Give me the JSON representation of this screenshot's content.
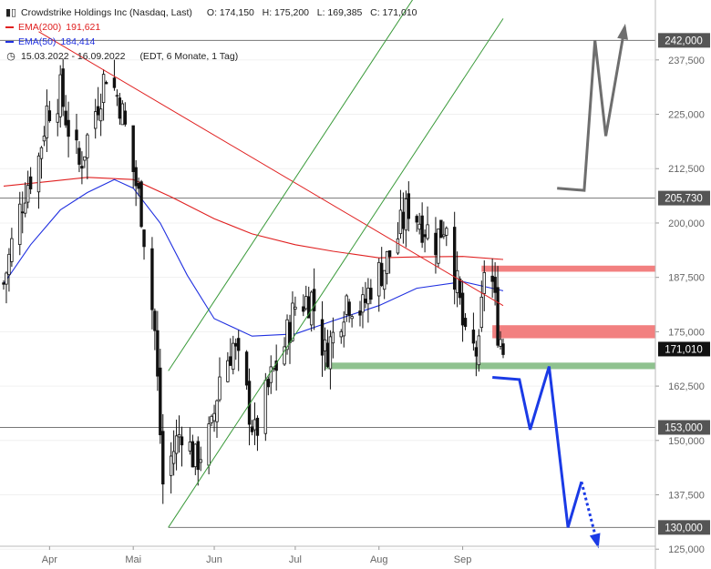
{
  "header": {
    "title": "Crowdstrike Holdings Inc (Nasdaq, Last)",
    "ohlc": "O: 174,150   H: 175,200   L: 169,385   C: 171,010",
    "ema200_label": "EMA(200)",
    "ema200_value": "191,621",
    "ema50_label": "EMA(50)",
    "ema50_value": "184,414",
    "date_range": "15.03.2022 - 16.09.2022",
    "settings": "(EDT, 6 Monate, 1 Tag)",
    "chart_icon": "candlestick-icon",
    "clock_icon": "clock-icon"
  },
  "colors": {
    "ema200": "#e02020",
    "ema50": "#2030e0",
    "trendline": "#e02020",
    "channel": "#3a9a3a",
    "resistance_zone": "#f28080",
    "support_zone": "#8fc28f",
    "scenario_up": "#6e6e6e",
    "scenario_down": "#1a3ae6",
    "price_box": "#111111",
    "level_box": "#555555"
  },
  "chart_data": {
    "type": "candlestick",
    "ylim": [
      124000,
      245000
    ],
    "y_ticks": [
      125000,
      137500,
      150000,
      162500,
      175000,
      187500,
      200000,
      212500,
      225000,
      237500
    ],
    "y_tick_labels": [
      "125,000",
      "137,500",
      "150,000",
      "162,500",
      "175,000",
      "187,500",
      "200,000",
      "212,500",
      "225,000",
      "237,500"
    ],
    "x_labels": [
      {
        "label": "Apr",
        "date": "2022-04-01"
      },
      {
        "label": "Mai",
        "date": "2022-05-02"
      },
      {
        "label": "Jun",
        "date": "2022-06-01"
      },
      {
        "label": "Jul",
        "date": "2022-07-01"
      },
      {
        "label": "Aug",
        "date": "2022-08-01"
      },
      {
        "label": "Sep",
        "date": "2022-09-01"
      }
    ],
    "date_range": [
      "2022-03-15",
      "2022-09-16"
    ],
    "horizontal_levels": [
      {
        "value": 242000,
        "label": "242,000"
      },
      {
        "value": 205730,
        "label": "205,730"
      },
      {
        "value": 153000,
        "label": "153,000"
      },
      {
        "value": 130000,
        "label": "130,000"
      }
    ],
    "last_price": {
      "value": 171010,
      "label": "171,010"
    },
    "price_path": [
      [
        "2022-03-15",
        186000
      ],
      [
        "2022-03-18",
        195000
      ],
      [
        "2022-03-23",
        208000
      ],
      [
        "2022-03-28",
        215000
      ],
      [
        "2022-03-31",
        226000
      ],
      [
        "2022-04-05",
        230000
      ],
      [
        "2022-04-08",
        222000
      ],
      [
        "2022-04-12",
        213000
      ],
      [
        "2022-04-18",
        226000
      ],
      [
        "2022-04-22",
        235000
      ],
      [
        "2022-04-27",
        228000
      ],
      [
        "2022-05-02",
        212000
      ],
      [
        "2022-05-05",
        203000
      ],
      [
        "2022-05-10",
        175000
      ],
      [
        "2022-05-13",
        140000
      ],
      [
        "2022-05-17",
        148000
      ],
      [
        "2022-05-20",
        153000
      ],
      [
        "2022-05-25",
        145000
      ],
      [
        "2022-05-31",
        152000
      ],
      [
        "2022-06-03",
        165000
      ],
      [
        "2022-06-08",
        172000
      ],
      [
        "2022-06-13",
        160000
      ],
      [
        "2022-06-16",
        151000
      ],
      [
        "2022-06-22",
        164000
      ],
      [
        "2022-06-27",
        172000
      ],
      [
        "2022-07-01",
        181000
      ],
      [
        "2022-07-07",
        183000
      ],
      [
        "2022-07-12",
        170000
      ],
      [
        "2022-07-15",
        174000
      ],
      [
        "2022-07-20",
        183000
      ],
      [
        "2022-07-26",
        180000
      ],
      [
        "2022-07-29",
        186000
      ],
      [
        "2022-08-03",
        190000
      ],
      [
        "2022-08-08",
        197000
      ],
      [
        "2022-08-12",
        204000
      ],
      [
        "2022-08-17",
        200000
      ],
      [
        "2022-08-22",
        196000
      ],
      [
        "2022-08-26",
        201000
      ],
      [
        "2022-08-31",
        181000
      ],
      [
        "2022-09-02",
        172000
      ],
      [
        "2022-09-07",
        170000
      ],
      [
        "2022-09-09",
        190000
      ],
      [
        "2022-09-12",
        186000
      ],
      [
        "2022-09-14",
        176000
      ],
      [
        "2022-09-16",
        171010
      ]
    ],
    "ema200": [
      [
        "2022-03-15",
        208500
      ],
      [
        "2022-03-31",
        209500
      ],
      [
        "2022-04-15",
        210500
      ],
      [
        "2022-05-02",
        210000
      ],
      [
        "2022-05-16",
        206000
      ],
      [
        "2022-06-01",
        201000
      ],
      [
        "2022-06-15",
        197500
      ],
      [
        "2022-07-01",
        195000
      ],
      [
        "2022-07-15",
        193500
      ],
      [
        "2022-08-01",
        192000
      ],
      [
        "2022-08-15",
        192200
      ],
      [
        "2022-09-01",
        192300
      ],
      [
        "2022-09-16",
        191621
      ]
    ],
    "ema50": [
      [
        "2022-03-15",
        186000
      ],
      [
        "2022-03-25",
        195000
      ],
      [
        "2022-04-05",
        203000
      ],
      [
        "2022-04-15",
        207000
      ],
      [
        "2022-04-25",
        210000
      ],
      [
        "2022-05-02",
        208000
      ],
      [
        "2022-05-12",
        200000
      ],
      [
        "2022-05-22",
        188000
      ],
      [
        "2022-06-01",
        178000
      ],
      [
        "2022-06-15",
        174000
      ],
      [
        "2022-07-01",
        174500
      ],
      [
        "2022-07-15",
        177500
      ],
      [
        "2022-08-01",
        181000
      ],
      [
        "2022-08-15",
        185000
      ],
      [
        "2022-09-01",
        186500
      ],
      [
        "2022-09-16",
        184414
      ]
    ],
    "trendlines": [
      {
        "name": "downtrend",
        "points": [
          [
            "2022-03-28",
            244000
          ],
          [
            "2022-09-16",
            181000
          ]
        ]
      },
      {
        "name": "channel-lower",
        "points": [
          [
            "2022-05-15",
            130000
          ],
          [
            "2022-09-16",
            247000
          ]
        ]
      },
      {
        "name": "channel-upper",
        "points": [
          [
            "2022-05-15",
            166000
          ],
          [
            "2022-09-16",
            283000
          ]
        ]
      }
    ],
    "zones": [
      {
        "name": "resistance-upper",
        "from": "2022-09-08",
        "y": [
          188800,
          190200
        ]
      },
      {
        "name": "resistance-lower",
        "from": "2022-09-12",
        "y": [
          173500,
          176500
        ]
      },
      {
        "name": "support",
        "from": "2022-07-12",
        "y": [
          166400,
          167900
        ]
      }
    ],
    "scenario_up": [
      [
        "2022-10-06",
        208000
      ],
      [
        "2022-10-16",
        207500
      ],
      [
        "2022-10-20",
        242000
      ],
      [
        "2022-10-24",
        220000
      ],
      [
        "2022-10-31",
        245000
      ]
    ],
    "scenario_down_solid": [
      [
        "2022-09-12",
        164500
      ],
      [
        "2022-09-22",
        164000
      ],
      [
        "2022-09-26",
        152500
      ],
      [
        "2022-10-03",
        167000
      ],
      [
        "2022-10-10",
        130000
      ],
      [
        "2022-10-15",
        140500
      ]
    ],
    "scenario_down_dotted": [
      [
        "2022-10-15",
        140500
      ],
      [
        "2022-10-21",
        126000
      ]
    ]
  }
}
